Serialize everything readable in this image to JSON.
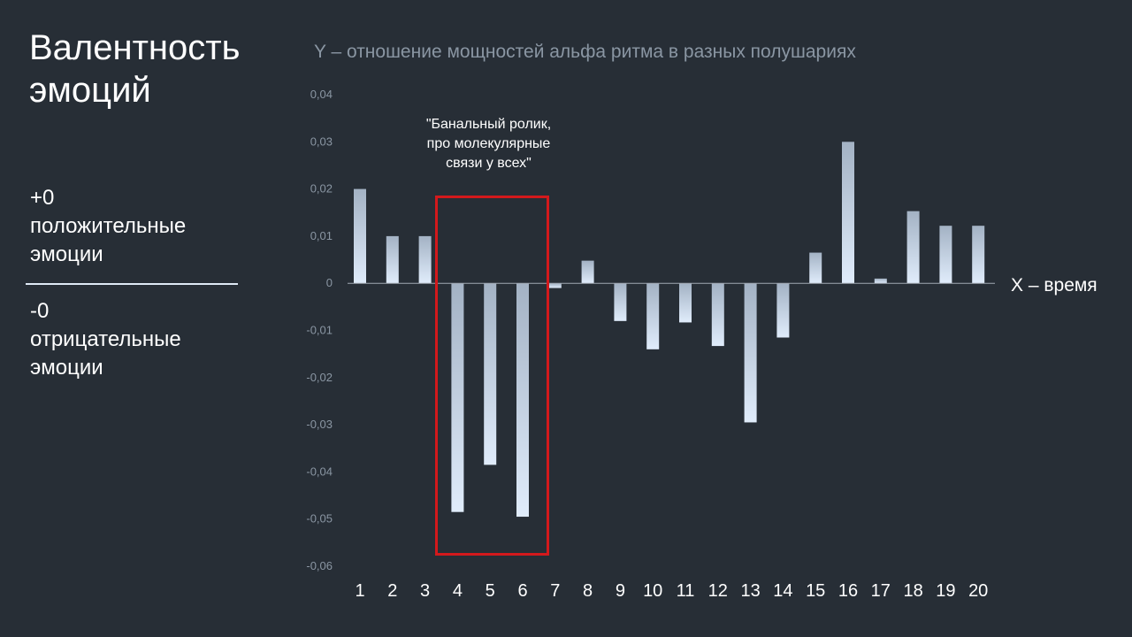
{
  "slide": {
    "title_line1": "Валентность",
    "title_line2": "эмоций",
    "positive": {
      "value": "+0",
      "line1": "положительные",
      "line2": "эмоции"
    },
    "negative": {
      "value": "-0",
      "line1": "отрицательные",
      "line2": "эмоции"
    }
  },
  "chart_data": {
    "type": "bar",
    "title": "Y – отношение мощностей альфа ритма в разных полушариях",
    "xlabel": "X – время",
    "ylabel": "",
    "categories": [
      "1",
      "2",
      "3",
      "4",
      "5",
      "6",
      "7",
      "8",
      "9",
      "10",
      "11",
      "12",
      "13",
      "14",
      "15",
      "16",
      "17",
      "18",
      "19",
      "20"
    ],
    "values": [
      0.02,
      0.01,
      0.01,
      -0.0485,
      -0.0385,
      -0.0495,
      -0.001,
      0.0048,
      -0.008,
      -0.014,
      -0.0083,
      -0.0133,
      -0.0295,
      -0.0115,
      0.0065,
      0.03,
      0.001,
      0.0153,
      0.0122,
      0.0122
    ],
    "ylim": [
      -0.06,
      0.04
    ],
    "y_ticks": [
      {
        "value": 0.04,
        "label": "0,04"
      },
      {
        "value": 0.03,
        "label": "0,03"
      },
      {
        "value": 0.02,
        "label": "0,02"
      },
      {
        "value": 0.01,
        "label": "0,01"
      },
      {
        "value": 0,
        "label": "0"
      },
      {
        "value": -0.01,
        "label": "-0,01"
      },
      {
        "value": -0.02,
        "label": "-0,02"
      },
      {
        "value": -0.03,
        "label": "-0,03"
      },
      {
        "value": -0.04,
        "label": "-0,04"
      },
      {
        "value": -0.05,
        "label": "-0,05"
      },
      {
        "value": -0.06,
        "label": "-0,06"
      }
    ],
    "grid": false,
    "annotation": {
      "text": "\"Банальный ролик,\nпро молекулярные\nсвязи у всех\"",
      "highlight_categories": [
        "4",
        "6"
      ],
      "highlight_color": "#d3191c"
    },
    "colors": {
      "bar_top": "#a3b2c4",
      "bar_bottom": "#e0ecfb",
      "axis": "#a0a8b2",
      "tick_label": "#8a96a3"
    }
  }
}
